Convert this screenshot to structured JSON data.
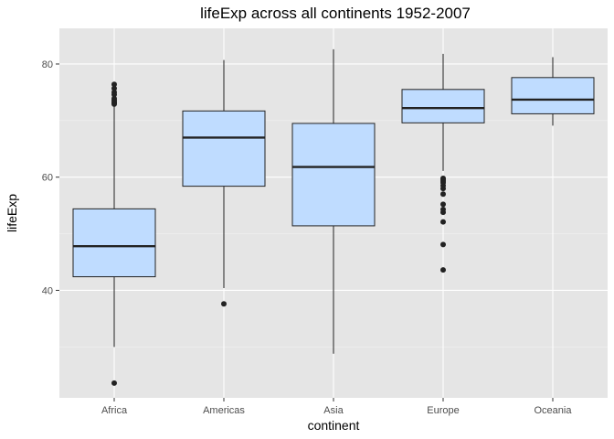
{
  "chart_data": {
    "type": "boxplot",
    "title": "lifeExp across all continents 1952-2007",
    "xlabel": "continent",
    "ylabel": "lifeExp",
    "categories": [
      "Africa",
      "Americas",
      "Asia",
      "Europe",
      "Oceania"
    ],
    "ylim": [
      21.0,
      86.3
    ],
    "yticks": [
      40,
      60,
      80
    ],
    "grid": true,
    "legend": "none",
    "colors": {
      "panel_background": "#e5e5e5",
      "grid_major": "#ffffff",
      "grid_minor": "#f2f2f2",
      "box_fill": "#bfdcff",
      "box_stroke": "#222222",
      "median": "#222222",
      "outlier": "#222222"
    },
    "boxes": [
      {
        "category": "Africa",
        "whisker_low": 30.0,
        "q1": 42.4,
        "median": 47.8,
        "q3": 54.4,
        "whisker_high": 72.7,
        "outliers": [
          23.6,
          72.9,
          73.1,
          73.3,
          73.6,
          73.9,
          74.6,
          75.0,
          75.7,
          76.4
        ]
      },
      {
        "category": "Americas",
        "whisker_low": 40.4,
        "q1": 58.4,
        "median": 67.0,
        "q3": 71.7,
        "whisker_high": 80.7,
        "outliers": [
          37.6
        ]
      },
      {
        "category": "Asia",
        "whisker_low": 28.8,
        "q1": 51.4,
        "median": 61.8,
        "q3": 69.5,
        "whisker_high": 82.6,
        "outliers": []
      },
      {
        "category": "Europe",
        "whisker_low": 61.1,
        "q1": 69.6,
        "median": 72.2,
        "q3": 75.5,
        "whisker_high": 81.8,
        "outliers": [
          43.6,
          48.1,
          52.1,
          53.8,
          54.3,
          55.2,
          57.0,
          58.0,
          58.5,
          59.0,
          59.3,
          59.6,
          59.8
        ]
      },
      {
        "category": "Oceania",
        "whisker_low": 69.1,
        "q1": 71.2,
        "median": 73.7,
        "q3": 77.6,
        "whisker_high": 81.2,
        "outliers": []
      }
    ]
  }
}
